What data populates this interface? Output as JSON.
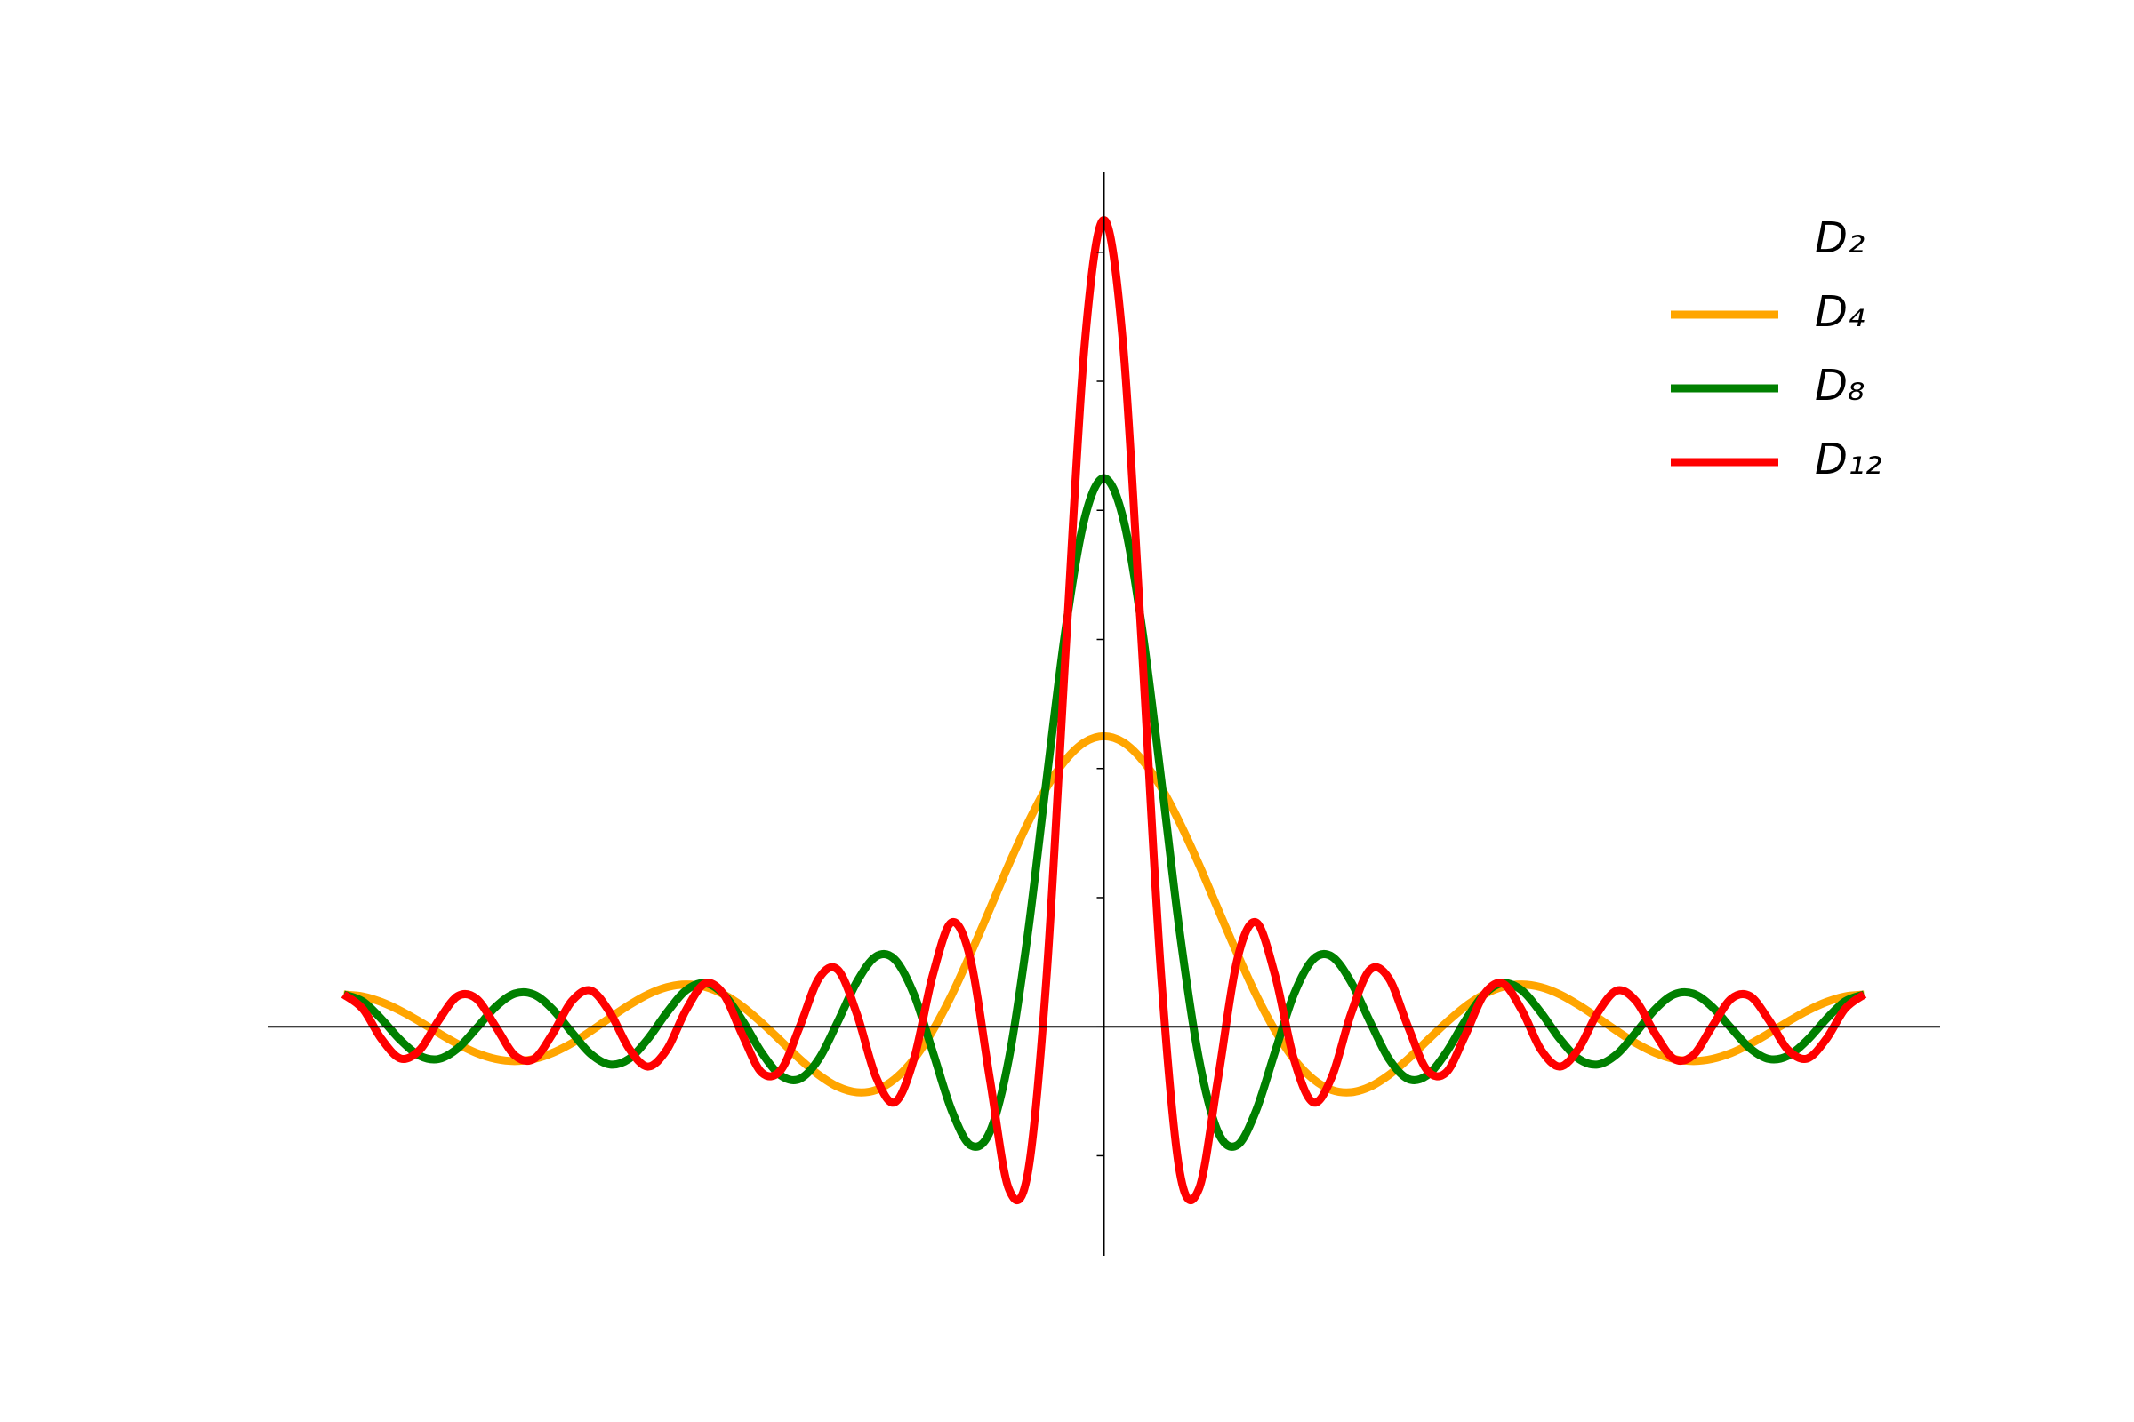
{
  "chart_data": {
    "type": "line",
    "x": [
      -3.142,
      -3.063,
      -2.985,
      -2.906,
      -2.827,
      -2.749,
      -2.67,
      -2.592,
      -2.513,
      -2.435,
      -2.356,
      -2.278,
      -2.199,
      -2.121,
      -2.042,
      -1.963,
      -1.885,
      -1.806,
      -1.728,
      -1.649,
      -1.571,
      -1.492,
      -1.414,
      -1.335,
      -1.257,
      -1.178,
      -1.1,
      -1.021,
      -0.942,
      -0.864,
      -0.785,
      -0.707,
      -0.628,
      -0.55,
      -0.471,
      -0.393,
      -0.314,
      -0.236,
      -0.157,
      -0.079,
      0,
      0.079,
      0.157,
      0.236,
      0.314,
      0.393,
      0.471,
      0.55,
      0.628,
      0.707,
      0.785,
      0.864,
      0.942,
      1.021,
      1.1,
      1.178,
      1.257,
      1.335,
      1.414,
      1.492,
      1.571,
      1.649,
      1.728,
      1.806,
      1.885,
      1.963,
      2.042,
      2.121,
      2.199,
      2.278,
      2.356,
      2.435,
      2.513,
      2.592,
      2.67,
      2.749,
      2.827,
      2.906,
      2.985,
      3.063,
      3.142
    ],
    "series": [
      {
        "name": "D₂"
      },
      {
        "name": "D₄",
        "color": "#ffa500",
        "values": [
          1,
          0.939,
          0.763,
          0.492,
          0.158,
          -0.199,
          -0.537,
          -0.816,
          -1,
          -1.065,
          -1,
          -0.809,
          -0.51,
          -0.135,
          0.274,
          0.668,
          1,
          1.226,
          1.311,
          1.237,
          1,
          0.617,
          0.121,
          -0.438,
          -1,
          -1.497,
          -1.861,
          -2.032,
          -1.963,
          -1.621,
          -1,
          -0.113,
          1,
          2.281,
          3.652,
          5.027,
          6.314,
          7.423,
          8.277,
          8.816,
          9,
          8.816,
          8.277,
          7.423,
          6.314,
          5.027,
          3.652,
          2.281,
          1,
          -0.113,
          -1,
          -1.621,
          -1.963,
          -2.032,
          -1.861,
          -1.497,
          -1,
          -0.438,
          0.121,
          0.617,
          1,
          1.237,
          1.311,
          1.226,
          1,
          0.668,
          0.274,
          -0.135,
          -0.51,
          -0.809,
          -1,
          -1.065,
          -1,
          -0.816,
          -0.537,
          -0.199,
          0.158,
          0.492,
          0.763,
          0.939,
          1
        ]
      },
      {
        "name": "D₈",
        "color": "#008000",
        "values": [
          1,
          0.786,
          0.234,
          -0.422,
          -0.902,
          -1,
          -0.668,
          -0.041,
          0.618,
          1.026,
          1,
          0.538,
          -0.176,
          -0.842,
          -1.169,
          -1,
          -0.382,
          0.441,
          1.121,
          1.352,
          1,
          0.173,
          -0.805,
          -1.515,
          -1.618,
          -1,
          0.15,
          1.389,
          2.176,
          2.084,
          1,
          -0.784,
          -2.618,
          -3.681,
          -3.257,
          -1,
          2.902,
          7.726,
          12.393,
          15.769,
          17,
          15.769,
          12.393,
          7.726,
          2.902,
          -1,
          -3.257,
          -3.681,
          -2.618,
          -0.784,
          1,
          2.084,
          2.176,
          1.389,
          0.15,
          -1,
          -1.618,
          -1.515,
          -0.805,
          0.173,
          1,
          1.352,
          1.121,
          0.441,
          -0.382,
          -1,
          -1.169,
          -0.842,
          -0.176,
          0.538,
          1,
          1.026,
          0.618,
          -0.041,
          -0.668,
          -1,
          -0.902,
          -0.422,
          0.234,
          0.786,
          1
        ]
      },
      {
        "name": "D₁₂",
        "color": "#ff0000",
        "values": [
          1,
          0.556,
          -0.384,
          -0.988,
          -0.716,
          0.199,
          0.95,
          0.864,
          0,
          -0.886,
          -1,
          -0.215,
          0.794,
          1.124,
          0.449,
          -0.668,
          -1.236,
          -0.707,
          0.503,
          1.336,
          1,
          -0.287,
          -1.423,
          -1.343,
          0,
          1.497,
          1.768,
          0.399,
          -1.558,
          -2.343,
          -1,
          1.605,
          3.236,
          2.047,
          -1.639,
          -5.027,
          -4.52,
          1.66,
          11.775,
          21.179,
          25,
          21.179,
          11.775,
          1.66,
          -4.52,
          -5.027,
          -1.639,
          2.047,
          3.236,
          1.605,
          -1,
          -2.343,
          -1.558,
          0.399,
          1.768,
          1.497,
          0,
          -1.343,
          -1.423,
          -0.287,
          1,
          1.336,
          0.503,
          -0.707,
          -1.236,
          -0.668,
          0.449,
          1.124,
          0.794,
          -0.215,
          -1,
          -0.886,
          0,
          0.864,
          0.95,
          0.199,
          -0.716,
          -0.988,
          -0.384,
          0.556,
          1
        ]
      }
    ],
    "xlim": [
      -3.456,
      3.456
    ],
    "ylim": [
      -7.1,
      26.5
    ],
    "yticks": [
      -4,
      0,
      4,
      8,
      12,
      16,
      20,
      24
    ],
    "legend": "upper right"
  }
}
